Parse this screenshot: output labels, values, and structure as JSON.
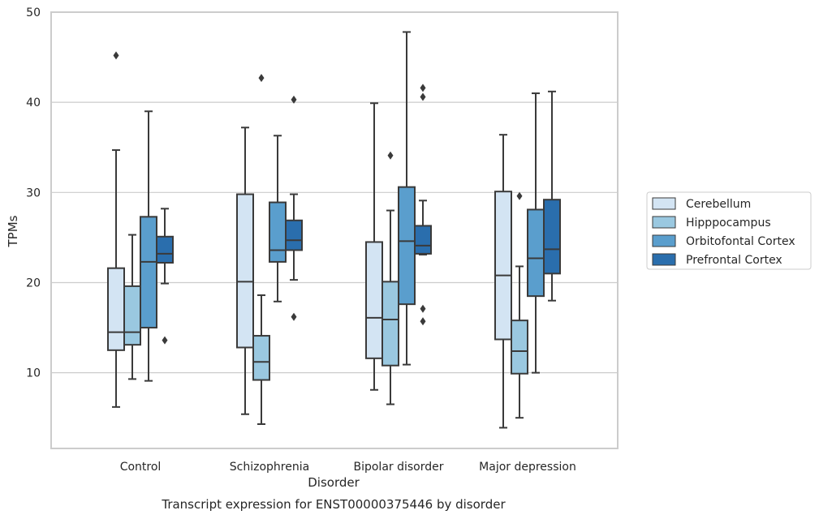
{
  "chart_data": {
    "type": "box",
    "xlabel": "Disorder",
    "ylabel": "TPMs",
    "caption": "Transcript expression for ENST00000375446 by disorder",
    "ylim": [
      1.6,
      50
    ],
    "yticks": [
      10,
      20,
      30,
      40,
      50
    ],
    "grid": "horizontal",
    "legend_placement": "right",
    "categories": [
      "Control",
      "Schizophrenia",
      "Bipolar disorder",
      "Major depression"
    ],
    "series": [
      {
        "name": "Cerebellum",
        "color": "#d3e4f3",
        "boxes": [
          {
            "whisker_low": 6.2,
            "q1": 12.5,
            "median": 14.5,
            "q3": 21.6,
            "whisker_high": 34.7,
            "outliers": [
              45.2
            ]
          },
          {
            "whisker_low": 5.4,
            "q1": 12.8,
            "median": 20.1,
            "q3": 29.8,
            "whisker_high": 37.2,
            "outliers": []
          },
          {
            "whisker_low": 8.1,
            "q1": 11.6,
            "median": 16.1,
            "q3": 24.5,
            "whisker_high": 39.9,
            "outliers": []
          },
          {
            "whisker_low": 3.9,
            "q1": 13.7,
            "median": 20.8,
            "q3": 30.1,
            "whisker_high": 36.4,
            "outliers": []
          }
        ]
      },
      {
        "name": "Hipppocampus",
        "color": "#9ac8e0",
        "boxes": [
          {
            "whisker_low": 9.3,
            "q1": 13.1,
            "median": 14.5,
            "q3": 19.6,
            "whisker_high": 25.3,
            "outliers": []
          },
          {
            "whisker_low": 4.3,
            "q1": 9.2,
            "median": 11.2,
            "q3": 14.1,
            "whisker_high": 18.6,
            "outliers": [
              42.7
            ]
          },
          {
            "whisker_low": 6.5,
            "q1": 10.8,
            "median": 15.9,
            "q3": 20.1,
            "whisker_high": 28.0,
            "outliers": [
              34.1
            ]
          },
          {
            "whisker_low": 5.0,
            "q1": 9.9,
            "median": 12.4,
            "q3": 15.8,
            "whisker_high": 21.8,
            "outliers": [
              29.6
            ]
          }
        ]
      },
      {
        "name": "Orbitofontal Cortex",
        "color": "#5a9ecd",
        "boxes": [
          {
            "whisker_low": 9.1,
            "q1": 15.0,
            "median": 22.3,
            "q3": 27.3,
            "whisker_high": 39.0,
            "outliers": []
          },
          {
            "whisker_low": 17.9,
            "q1": 22.3,
            "median": 23.6,
            "q3": 28.9,
            "whisker_high": 36.3,
            "outliers": []
          },
          {
            "whisker_low": 10.9,
            "q1": 17.6,
            "median": 24.6,
            "q3": 30.6,
            "whisker_high": 47.8,
            "outliers": []
          },
          {
            "whisker_low": 10.0,
            "q1": 18.5,
            "median": 22.7,
            "q3": 28.1,
            "whisker_high": 41.0,
            "outliers": []
          }
        ]
      },
      {
        "name": "Prefrontal Cortex",
        "color": "#2a6ead",
        "boxes": [
          {
            "whisker_low": 19.9,
            "q1": 22.2,
            "median": 23.2,
            "q3": 25.1,
            "whisker_high": 28.2,
            "outliers": [
              13.6
            ]
          },
          {
            "whisker_low": 20.3,
            "q1": 23.6,
            "median": 24.7,
            "q3": 26.9,
            "whisker_high": 29.8,
            "outliers": [
              40.3,
              16.2
            ]
          },
          {
            "whisker_low": 23.1,
            "q1": 23.2,
            "median": 24.1,
            "q3": 26.3,
            "whisker_high": 29.1,
            "outliers": [
              41.6,
              40.6,
              17.1,
              15.7
            ]
          },
          {
            "whisker_low": 18.0,
            "q1": 21.0,
            "median": 23.7,
            "q3": 29.2,
            "whisker_high": 41.2,
            "outliers": []
          }
        ]
      }
    ]
  }
}
